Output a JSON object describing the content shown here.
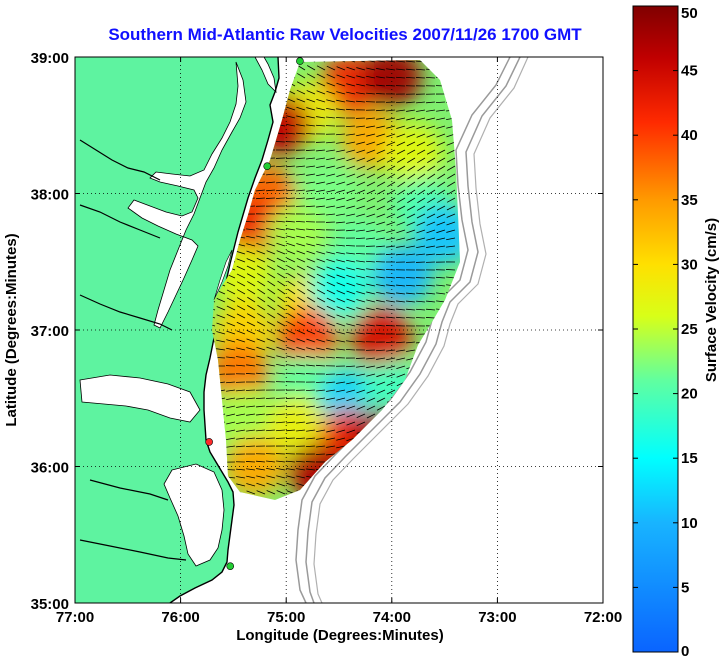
{
  "chart_data": {
    "type": "heatmap",
    "title": "Southern Mid-Atlantic Raw Velocities 2007/11/26 1700 GMT",
    "xlabel": "Longitude (Degrees:Minutes)",
    "ylabel": "Latitude (Degrees:Minutes)",
    "colorbar_label": "Surface Velocity (cm/s)",
    "xlim": [
      -77,
      -72
    ],
    "ylim": [
      35,
      39
    ],
    "x_ticks": [
      {
        "value": -77,
        "label": "77:00"
      },
      {
        "value": -76,
        "label": "76:00"
      },
      {
        "value": -75,
        "label": "75:00"
      },
      {
        "value": -74,
        "label": "74:00"
      },
      {
        "value": -73,
        "label": "73:00"
      },
      {
        "value": -72,
        "label": "72:00"
      }
    ],
    "y_ticks": [
      {
        "value": 35,
        "label": "35:00"
      },
      {
        "value": 36,
        "label": "36:00"
      },
      {
        "value": 37,
        "label": "37:00"
      },
      {
        "value": 38,
        "label": "38:00"
      },
      {
        "value": 39,
        "label": "39:00"
      }
    ],
    "colorbar_range": [
      0,
      50
    ],
    "colorbar_ticks": [
      "0",
      "5",
      "10",
      "15",
      "20",
      "25",
      "30",
      "35",
      "40",
      "45",
      "50"
    ],
    "grid": true,
    "land_color": "#5ef3a0",
    "stations": [
      {
        "lon": -74.87,
        "lat": 38.97,
        "color": "#22cc33"
      },
      {
        "lon": -75.18,
        "lat": 38.2,
        "color": "#22cc33"
      },
      {
        "lon": -75.73,
        "lat": 36.18,
        "color": "#ff2a2a"
      },
      {
        "lon": -75.53,
        "lat": 35.27,
        "color": "#22cc33"
      }
    ],
    "velocity_field": {
      "units": "cm/s",
      "points": [
        {
          "lon": -74.4,
          "lat": 38.8,
          "speed": 42
        },
        {
          "lon": -74.0,
          "lat": 38.85,
          "speed": 48
        },
        {
          "lon": -74.8,
          "lat": 38.6,
          "speed": 28
        },
        {
          "lon": -75.05,
          "lat": 38.5,
          "speed": 46
        },
        {
          "lon": -74.2,
          "lat": 38.4,
          "speed": 34
        },
        {
          "lon": -73.8,
          "lat": 38.3,
          "speed": 27
        },
        {
          "lon": -75.2,
          "lat": 38.0,
          "speed": 38
        },
        {
          "lon": -74.6,
          "lat": 38.0,
          "speed": 22
        },
        {
          "lon": -73.7,
          "lat": 37.9,
          "speed": 20
        },
        {
          "lon": -73.5,
          "lat": 37.7,
          "speed": 11
        },
        {
          "lon": -75.3,
          "lat": 37.75,
          "speed": 42
        },
        {
          "lon": -74.9,
          "lat": 37.7,
          "speed": 24
        },
        {
          "lon": -74.3,
          "lat": 37.6,
          "speed": 21
        },
        {
          "lon": -73.9,
          "lat": 37.4,
          "speed": 10
        },
        {
          "lon": -75.4,
          "lat": 37.4,
          "speed": 27
        },
        {
          "lon": -74.8,
          "lat": 37.2,
          "speed": 30
        },
        {
          "lon": -74.5,
          "lat": 37.3,
          "speed": 16
        },
        {
          "lon": -75.4,
          "lat": 37.0,
          "speed": 31
        },
        {
          "lon": -74.8,
          "lat": 36.95,
          "speed": 40
        },
        {
          "lon": -74.1,
          "lat": 36.95,
          "speed": 44
        },
        {
          "lon": -75.45,
          "lat": 36.7,
          "speed": 37
        },
        {
          "lon": -74.8,
          "lat": 36.6,
          "speed": 21
        },
        {
          "lon": -74.4,
          "lat": 36.5,
          "speed": 12
        },
        {
          "lon": -74.0,
          "lat": 36.55,
          "speed": 19
        },
        {
          "lon": -75.4,
          "lat": 36.35,
          "speed": 24
        },
        {
          "lon": -74.9,
          "lat": 36.3,
          "speed": 28
        },
        {
          "lon": -74.4,
          "lat": 36.2,
          "speed": 42
        },
        {
          "lon": -74.1,
          "lat": 36.2,
          "speed": 48
        },
        {
          "lon": -75.3,
          "lat": 36.0,
          "speed": 34
        },
        {
          "lon": -74.7,
          "lat": 35.95,
          "speed": 47
        }
      ]
    }
  }
}
